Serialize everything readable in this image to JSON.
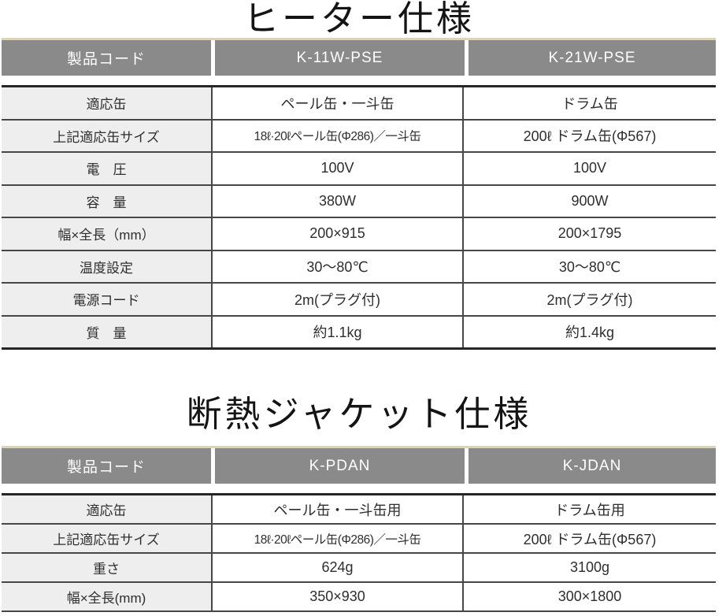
{
  "heater_table": {
    "title": "ヒーター仕様",
    "header": [
      "製品コード",
      "K-11W-PSE",
      "K-21W-PSE"
    ],
    "rows": [
      {
        "label": "適応缶",
        "col1": "ペール缶・一斗缶",
        "col2": "ドラム缶"
      },
      {
        "label": "上記適応缶サイズ",
        "col1": "18ℓ·20ℓペール缶(Φ286)／一斗缶",
        "col2": "200ℓ ドラム缶(Φ567)"
      },
      {
        "label": "電　圧",
        "col1": "100V",
        "col2": "100V"
      },
      {
        "label": "容　量",
        "col1": "380W",
        "col2": "900W"
      },
      {
        "label": "幅×全長（mm）",
        "col1": "200×915",
        "col2": "200×1795"
      },
      {
        "label": "温度設定",
        "col1": "30～80℃",
        "col2": "30～80℃"
      },
      {
        "label": "電源コード",
        "col1": "2m(プラグ付)",
        "col2": "2m(プラグ付)"
      },
      {
        "label": "質　量",
        "col1": "約1.1kg",
        "col2": "約1.4kg"
      }
    ]
  },
  "jacket_table": {
    "title": "断熱ジャケット仕様",
    "header": [
      "製品コード",
      "K-PDAN",
      "K-JDAN"
    ],
    "rows": [
      {
        "label": "適応缶",
        "col1": "ペール缶・一斗缶用",
        "col2": "ドラム缶用"
      },
      {
        "label": "上記適応缶サイズ",
        "col1": "18ℓ·20ℓペール缶(Φ286)／一斗缶",
        "col2": "200ℓ ドラム缶(Φ567)"
      },
      {
        "label": "重さ",
        "col1": "624g",
        "col2": "3100g"
      },
      {
        "label": "幅×全長(mm)",
        "col1": "350×930",
        "col2": "300×1800"
      }
    ]
  },
  "colors": {
    "header_bg": "#8a8a8a",
    "header_text": "#ffffff",
    "header_top_line": "#dbd4b8",
    "label_column_bg": "#eeeeee",
    "border_dark": "#262626",
    "border_inner": "#474747",
    "body_text": "#2e2e2e"
  }
}
